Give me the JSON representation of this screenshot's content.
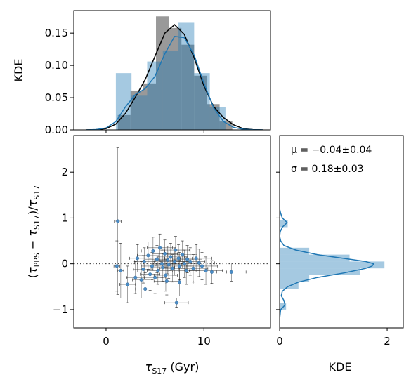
{
  "chart_data": [
    {
      "panel": "top-marginal",
      "type": "histogram+kde",
      "ylabel": "KDE",
      "xlim": [
        -3.3,
        16.8
      ],
      "ylim": [
        0,
        0.185
      ],
      "yticks": [
        "0.00",
        "0.05",
        "0.10",
        "0.15"
      ],
      "ytick_values": [
        0,
        0.05,
        0.1,
        0.15
      ],
      "series": [
        {
          "color": "#7f7f7f",
          "bin_edges": [
            1.2,
            2.5,
            3.8,
            5.1,
            6.4,
            7.7,
            9.0,
            10.3,
            11.6,
            12.9
          ],
          "heights": [
            0.023,
            0.061,
            0.072,
            0.176,
            0.158,
            0.132,
            0.084,
            0.04,
            0.013
          ]
        },
        {
          "color": "#1f77b4",
          "bin_edges": [
            1.0,
            2.6,
            4.2,
            5.8,
            7.4,
            9.0,
            10.6,
            12.2
          ],
          "heights": [
            0.088,
            0.053,
            0.106,
            0.123,
            0.166,
            0.088,
            0.035
          ]
        }
      ],
      "kde_lines": [
        {
          "color": "#000000",
          "x": [
            -2,
            -1,
            0,
            1,
            2,
            3,
            4,
            5,
            6,
            7,
            8,
            9,
            10,
            11,
            12,
            13,
            14,
            15,
            16
          ],
          "y": [
            0,
            0.0004,
            0.002,
            0.009,
            0.026,
            0.051,
            0.078,
            0.114,
            0.15,
            0.163,
            0.148,
            0.112,
            0.068,
            0.036,
            0.019,
            0.008,
            0.002,
            0.0004,
            0
          ]
        },
        {
          "color": "#1f77b4",
          "x": [
            -2,
            -1,
            0,
            1,
            2,
            3,
            4,
            5,
            6,
            7,
            8,
            9,
            10,
            11,
            12,
            13,
            14,
            15,
            16
          ],
          "y": [
            0,
            0.0005,
            0.003,
            0.013,
            0.036,
            0.055,
            0.064,
            0.083,
            0.118,
            0.145,
            0.143,
            0.116,
            0.072,
            0.034,
            0.013,
            0.004,
            0.001,
            0.0002,
            0
          ]
        }
      ]
    },
    {
      "panel": "main-scatter",
      "type": "scatter",
      "xlabel": "τ_S17 (Gyr)",
      "ylabel": "(τ_PPS − τ_S17)/τ_S17",
      "xlim": [
        -3.3,
        16.8
      ],
      "ylim": [
        -1.4,
        2.8
      ],
      "xticks": [
        "0",
        "10"
      ],
      "xtick_values": [
        0,
        10
      ],
      "yticks": [
        "−1",
        "0",
        "1",
        "2"
      ],
      "ytick_values": [
        -1,
        0,
        1,
        2
      ],
      "reference_line_y": 0,
      "points": [
        {
          "x": 1.2,
          "y": 0.93,
          "xerr": 0.35,
          "yerr": 1.6
        },
        {
          "x": 1.5,
          "y": -0.15,
          "xerr": 0.3,
          "yerr": 0.6
        },
        {
          "x": 1.1,
          "y": -0.05,
          "xerr": 0.3,
          "yerr": 0.55
        },
        {
          "x": 3.0,
          "y": -0.3,
          "xerr": 0.9,
          "yerr": 0.35
        },
        {
          "x": 3.2,
          "y": 0.12,
          "xerr": 0.8,
          "yerr": 0.3
        },
        {
          "x": 3.6,
          "y": -0.35,
          "xerr": 0.9,
          "yerr": 0.4
        },
        {
          "x": 3.8,
          "y": -0.12,
          "xerr": 1.0,
          "yerr": 0.3
        },
        {
          "x": 3.9,
          "y": 0.05,
          "xerr": 1.0,
          "yerr": 0.3
        },
        {
          "x": 4.3,
          "y": 0.18,
          "xerr": 1.1,
          "yerr": 0.3
        },
        {
          "x": 4.5,
          "y": -0.23,
          "xerr": 1.0,
          "yerr": 0.35
        },
        {
          "x": 4.7,
          "y": -0.05,
          "xerr": 1.1,
          "yerr": 0.3
        },
        {
          "x": 4.8,
          "y": 0.28,
          "xerr": 1.2,
          "yerr": 0.3
        },
        {
          "x": 5.0,
          "y": -0.3,
          "xerr": 1.1,
          "yerr": 0.35
        },
        {
          "x": 5.2,
          "y": 0.1,
          "xerr": 1.2,
          "yerr": 0.3
        },
        {
          "x": 5.3,
          "y": -0.15,
          "xerr": 1.1,
          "yerr": 0.3
        },
        {
          "x": 5.5,
          "y": 0.35,
          "xerr": 1.3,
          "yerr": 0.3
        },
        {
          "x": 5.7,
          "y": 0.0,
          "xerr": 1.2,
          "yerr": 0.3
        },
        {
          "x": 5.8,
          "y": -0.08,
          "xerr": 1.2,
          "yerr": 0.3
        },
        {
          "x": 6.0,
          "y": 0.22,
          "xerr": 1.3,
          "yerr": 0.3
        },
        {
          "x": 6.1,
          "y": -0.25,
          "xerr": 1.2,
          "yerr": 0.35
        },
        {
          "x": 6.3,
          "y": 0.08,
          "xerr": 1.3,
          "yerr": 0.3
        },
        {
          "x": 6.4,
          "y": -0.02,
          "xerr": 1.3,
          "yerr": 0.3
        },
        {
          "x": 6.6,
          "y": 0.15,
          "xerr": 1.4,
          "yerr": 0.3
        },
        {
          "x": 6.8,
          "y": -0.1,
          "xerr": 1.3,
          "yerr": 0.3
        },
        {
          "x": 7.0,
          "y": 0.05,
          "xerr": 1.4,
          "yerr": 0.3
        },
        {
          "x": 7.1,
          "y": 0.3,
          "xerr": 1.4,
          "yerr": 0.3
        },
        {
          "x": 7.2,
          "y": -0.85,
          "xerr": 1.2,
          "yerr": 0.1
        },
        {
          "x": 7.4,
          "y": 0.12,
          "xerr": 1.4,
          "yerr": 0.3
        },
        {
          "x": 7.5,
          "y": -0.05,
          "xerr": 1.4,
          "yerr": 0.3
        },
        {
          "x": 7.8,
          "y": 0.2,
          "xerr": 1.5,
          "yerr": 0.3
        },
        {
          "x": 8.0,
          "y": 0.0,
          "xerr": 1.5,
          "yerr": 0.3
        },
        {
          "x": 8.2,
          "y": -0.15,
          "xerr": 1.4,
          "yerr": 0.3
        },
        {
          "x": 8.3,
          "y": 0.1,
          "xerr": 1.5,
          "yerr": 0.3
        },
        {
          "x": 8.6,
          "y": 0.05,
          "xerr": 1.5,
          "yerr": 0.3
        },
        {
          "x": 8.9,
          "y": -0.1,
          "xerr": 1.5,
          "yerr": 0.3
        },
        {
          "x": 9.2,
          "y": 0.12,
          "xerr": 1.6,
          "yerr": 0.3
        },
        {
          "x": 9.5,
          "y": 0.02,
          "xerr": 1.6,
          "yerr": 0.3
        },
        {
          "x": 9.8,
          "y": -0.05,
          "xerr": 1.6,
          "yerr": 0.3
        },
        {
          "x": 10.2,
          "y": -0.15,
          "xerr": 1.7,
          "yerr": 0.3
        },
        {
          "x": 7.5,
          "y": -0.4,
          "xerr": 1.4,
          "yerr": 0.3
        },
        {
          "x": 6.2,
          "y": -0.38,
          "xerr": 1.3,
          "yerr": 0.3
        },
        {
          "x": 10.8,
          "y": -0.18,
          "xerr": 1.5,
          "yerr": 0.25
        },
        {
          "x": 12.8,
          "y": -0.18,
          "xerr": 1.5,
          "yerr": 0.2
        },
        {
          "x": 2.2,
          "y": -0.45,
          "xerr": 0.8,
          "yerr": 0.4
        },
        {
          "x": 4.0,
          "y": -0.55,
          "xerr": 1.0,
          "yerr": 0.35
        }
      ]
    },
    {
      "panel": "right-marginal",
      "type": "histogram+kde",
      "orientation": "horizontal",
      "xlabel": "KDE",
      "xlim": [
        0,
        2.3
      ],
      "xticks": [
        "0",
        "2"
      ],
      "xtick_values": [
        0,
        2
      ],
      "annotation_mu": "μ = −0.04±0.04",
      "annotation_sigma": "σ = 0.18±0.03",
      "bins": [
        {
          "y0": -1.0,
          "y1": -0.85,
          "w": 0.12
        },
        {
          "y0": -0.85,
          "y1": -0.7,
          "w": 0.0
        },
        {
          "y0": -0.7,
          "y1": -0.55,
          "w": 0.0
        },
        {
          "y0": -0.55,
          "y1": -0.4,
          "w": 0.35
        },
        {
          "y0": -0.4,
          "y1": -0.25,
          "w": 0.55
        },
        {
          "y0": -0.25,
          "y1": -0.1,
          "w": 1.5
        },
        {
          "y0": -0.1,
          "y1": 0.05,
          "w": 1.95
        },
        {
          "y0": 0.05,
          "y1": 0.2,
          "w": 1.3
        },
        {
          "y0": 0.2,
          "y1": 0.35,
          "w": 0.55
        },
        {
          "y0": 0.35,
          "y1": 0.5,
          "w": 0.0
        },
        {
          "y0": 0.5,
          "y1": 0.65,
          "w": 0.0
        },
        {
          "y0": 0.65,
          "y1": 0.8,
          "w": 0.0
        },
        {
          "y0": 0.8,
          "y1": 0.95,
          "w": 0.15
        }
      ],
      "kde": {
        "y": [
          -1.2,
          -1.0,
          -0.9,
          -0.8,
          -0.7,
          -0.6,
          -0.5,
          -0.4,
          -0.3,
          -0.2,
          -0.1,
          -0.05,
          0.0,
          0.05,
          0.1,
          0.2,
          0.3,
          0.4,
          0.5,
          0.6,
          0.7,
          0.8,
          0.9,
          1.0,
          1.1,
          1.2
        ],
        "w": [
          0.0,
          0.02,
          0.1,
          0.08,
          0.03,
          0.05,
          0.15,
          0.35,
          0.7,
          1.2,
          1.6,
          1.72,
          1.75,
          1.6,
          1.3,
          0.7,
          0.3,
          0.08,
          0.02,
          0.0,
          0.01,
          0.05,
          0.14,
          0.05,
          0.02,
          0.0
        ]
      }
    }
  ]
}
